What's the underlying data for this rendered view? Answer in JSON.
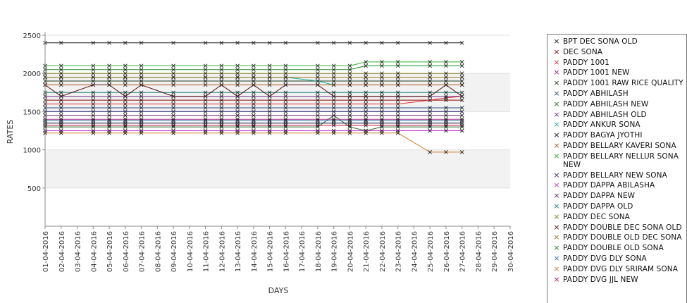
{
  "chart_data": {
    "type": "line",
    "xlabel": "DAYS",
    "ylabel": "RATES",
    "ylim": [
      0,
      2500
    ],
    "yticks": [
      500,
      1000,
      1500,
      2000,
      2500
    ],
    "categories": [
      "01-04-2016",
      "02-04-2016",
      "03-04-2016",
      "04-04-2016",
      "05-04-2016",
      "06-04-2016",
      "07-04-2016",
      "08-04-2016",
      "09-04-2016",
      "10-04-2016",
      "11-04-2016",
      "12-04-2016",
      "13-04-2016",
      "14-04-2016",
      "15-04-2016",
      "16-04-2016",
      "17-04-2016",
      "18-04-2016",
      "19-04-2016",
      "20-04-2016",
      "21-04-2016",
      "22-04-2016",
      "23-04-2016",
      "24-04-2016",
      "25-04-2016",
      "26-04-2016",
      "27-04-2016",
      "28-04-2016",
      "29-04-2016",
      "30-04-2016"
    ],
    "grid": true,
    "legend_position": "right",
    "series": [
      {
        "name": "BPT DEC SONA OLD",
        "color": "#1a1a1a",
        "values": [
          2400,
          2400,
          null,
          2400,
          2400,
          2400,
          2400,
          null,
          2400,
          null,
          2400,
          2400,
          2400,
          2400,
          2400,
          2400,
          null,
          2400,
          2400,
          2400,
          2400,
          2400,
          2400,
          null,
          2400,
          2400,
          2400,
          null,
          null,
          null
        ]
      },
      {
        "name": "DEC SONA",
        "color": "#8b0000",
        "values": [
          1650,
          1650,
          null,
          1650,
          1650,
          1650,
          1650,
          null,
          1650,
          null,
          1650,
          1650,
          1650,
          1650,
          1650,
          1650,
          null,
          1650,
          1650,
          1650,
          1650,
          1650,
          1650,
          null,
          1650,
          1650,
          1650,
          null,
          null,
          null
        ]
      },
      {
        "name": "PADDY 1001",
        "color": "#e03030",
        "values": [
          1600,
          1600,
          null,
          1600,
          1600,
          1600,
          1600,
          null,
          1600,
          null,
          1600,
          1600,
          1600,
          1600,
          1600,
          1600,
          null,
          1600,
          1600,
          1600,
          1600,
          1600,
          1600,
          null,
          1650,
          1680,
          1700,
          null,
          null,
          null
        ]
      },
      {
        "name": "PADDY 1001 NEW",
        "color": "#a0208a",
        "values": [
          1400,
          1400,
          null,
          1400,
          1400,
          1400,
          1400,
          null,
          1400,
          null,
          1400,
          1400,
          1400,
          1400,
          1400,
          1400,
          null,
          1400,
          1400,
          1400,
          1400,
          1400,
          1400,
          null,
          1400,
          1400,
          1400,
          null,
          null,
          null
        ]
      },
      {
        "name": "PADDY 1001 RAW RICE QUALITY",
        "color": "#1f3a1f",
        "values": [
          1900,
          1900,
          null,
          1900,
          1900,
          1900,
          1900,
          null,
          1900,
          null,
          1900,
          1900,
          1900,
          1900,
          1900,
          1900,
          null,
          1900,
          1900,
          1900,
          1900,
          1900,
          1900,
          null,
          1900,
          1900,
          1900,
          null,
          null,
          null
        ]
      },
      {
        "name": "PADDY ABHILASH",
        "color": "#2a4a80",
        "values": [
          1550,
          1550,
          null,
          1550,
          1550,
          1550,
          1550,
          null,
          1550,
          null,
          1550,
          1550,
          1550,
          1550,
          1550,
          1550,
          null,
          1550,
          1550,
          1550,
          1550,
          1550,
          1550,
          null,
          1550,
          1550,
          1550,
          null,
          null,
          null
        ]
      },
      {
        "name": "PADDY ABHILASH NEW",
        "color": "#2e6b2e",
        "values": [
          1300,
          1300,
          null,
          1300,
          1300,
          1300,
          1300,
          null,
          1300,
          null,
          1300,
          1300,
          1300,
          1300,
          1300,
          1300,
          null,
          1300,
          1450,
          1300,
          1250,
          1300,
          1300,
          null,
          1300,
          1300,
          1300,
          null,
          null,
          null
        ]
      },
      {
        "name": "PADDY ABHILASH OLD",
        "color": "#702a8a",
        "values": [
          1700,
          1700,
          null,
          1700,
          1700,
          1700,
          1700,
          null,
          1700,
          null,
          1700,
          1700,
          1700,
          1700,
          1700,
          1700,
          null,
          1700,
          1700,
          1700,
          1700,
          1700,
          1700,
          null,
          1700,
          1700,
          1700,
          null,
          null,
          null
        ]
      },
      {
        "name": "PADDY ANKUR SONA",
        "color": "#20b0a0",
        "values": [
          1950,
          1950,
          null,
          1950,
          1950,
          1950,
          1950,
          null,
          1950,
          null,
          1950,
          1950,
          1950,
          1950,
          1950,
          1950,
          null,
          1900,
          1850,
          1850,
          1850,
          1850,
          1850,
          null,
          1850,
          1850,
          1850,
          null,
          null,
          null
        ]
      },
      {
        "name": "PADDY BAGYA JYOTHI",
        "color": "#0d0d3a",
        "values": [
          1350,
          1350,
          null,
          1350,
          1350,
          1350,
          1350,
          null,
          1350,
          null,
          1350,
          1350,
          1350,
          1350,
          1350,
          1350,
          null,
          1350,
          1350,
          1350,
          1350,
          1350,
          1350,
          null,
          1350,
          1350,
          1350,
          null,
          null,
          null
        ]
      },
      {
        "name": "PADDY BELLARY KAVERI SONA",
        "color": "#b05010",
        "values": [
          1850,
          1850,
          null,
          1850,
          1850,
          1850,
          1850,
          null,
          1850,
          null,
          1850,
          1850,
          1850,
          1850,
          1850,
          1850,
          null,
          1850,
          1850,
          1850,
          1850,
          1850,
          1850,
          null,
          1850,
          1850,
          1850,
          null,
          null,
          null
        ]
      },
      {
        "name": "PADDY BELLARY NELLUR SONA NEW",
        "color": "#30b030",
        "values": [
          2100,
          2100,
          null,
          2100,
          2100,
          2100,
          2100,
          null,
          2100,
          null,
          2100,
          2100,
          2100,
          2100,
          2100,
          2100,
          null,
          2100,
          2100,
          2100,
          2150,
          2150,
          2150,
          null,
          2150,
          2150,
          2150,
          null,
          null,
          null
        ]
      },
      {
        "name": "PADDY BELLARY NEW SONA",
        "color": "#303080",
        "values": [
          1500,
          1500,
          null,
          1500,
          1500,
          1500,
          1500,
          null,
          1500,
          null,
          1500,
          1500,
          1500,
          1500,
          1500,
          1500,
          null,
          1500,
          1500,
          1500,
          1500,
          1500,
          1500,
          null,
          1500,
          1500,
          1500,
          null,
          null,
          null
        ]
      },
      {
        "name": "PADDY DAPPA ABILASHA",
        "color": "#d030d0",
        "values": [
          1250,
          1250,
          null,
          1250,
          1250,
          1250,
          1250,
          null,
          1250,
          null,
          1250,
          1250,
          1250,
          1250,
          1250,
          1250,
          null,
          1250,
          1250,
          1250,
          1250,
          1250,
          1250,
          null,
          1250,
          1250,
          1250,
          null,
          null,
          null
        ]
      },
      {
        "name": "PADDY DAPPA NEW",
        "color": "#6a2a6a",
        "values": [
          1450,
          1450,
          null,
          1450,
          1450,
          1450,
          1450,
          null,
          1450,
          null,
          1450,
          1450,
          1450,
          1450,
          1450,
          1450,
          null,
          1450,
          1450,
          1450,
          1450,
          1450,
          1450,
          null,
          1450,
          1450,
          1450,
          null,
          null,
          null
        ]
      },
      {
        "name": "PADDY DAPPA OLD",
        "color": "#208080",
        "values": [
          1750,
          1750,
          null,
          1750,
          1750,
          1750,
          1750,
          null,
          1750,
          null,
          1750,
          1750,
          1750,
          1750,
          1750,
          1750,
          null,
          1750,
          1750,
          1750,
          1750,
          1750,
          1750,
          null,
          1750,
          1750,
          1750,
          null,
          null,
          null
        ]
      },
      {
        "name": "PADDY DEC SONA",
        "color": "#808020",
        "values": [
          2000,
          2000,
          null,
          2000,
          2000,
          2000,
          2000,
          null,
          2000,
          null,
          2000,
          2000,
          2000,
          2000,
          2000,
          2000,
          null,
          2000,
          2000,
          2000,
          2000,
          2000,
          2000,
          null,
          2000,
          2000,
          2000,
          null,
          null,
          null
        ]
      },
      {
        "name": "PADDY DOUBLE DEC SONA OLD",
        "color": "#5a0d0d",
        "values": [
          1850,
          1700,
          null,
          1850,
          1850,
          1700,
          1850,
          null,
          1700,
          null,
          1700,
          1850,
          1700,
          1850,
          1700,
          1850,
          null,
          1850,
          1700,
          1700,
          1700,
          1700,
          1700,
          null,
          1700,
          1850,
          1700,
          null,
          null,
          null
        ]
      },
      {
        "name": "PADDY DOUBLE OLD DEC SONA",
        "color": "#9a7a1a",
        "values": [
          1950,
          1950,
          null,
          1950,
          1950,
          1950,
          1950,
          null,
          1950,
          null,
          1950,
          1950,
          1950,
          1950,
          1950,
          1950,
          null,
          1950,
          1950,
          1950,
          1950,
          1950,
          1950,
          null,
          1950,
          1950,
          1950,
          null,
          null,
          null
        ]
      },
      {
        "name": "PADDY DOUBLE OLD SONA",
        "color": "#1a8a1a",
        "values": [
          2050,
          2050,
          null,
          2050,
          2050,
          2050,
          2050,
          null,
          2050,
          null,
          2050,
          2050,
          2050,
          2050,
          2050,
          2050,
          null,
          2050,
          2050,
          2050,
          2100,
          2100,
          2100,
          null,
          2100,
          2100,
          2100,
          null,
          null,
          null
        ]
      },
      {
        "name": "PADDY DVG DLY SONA",
        "color": "#3070b0",
        "values": [
          1380,
          1380,
          null,
          1380,
          1380,
          1380,
          1380,
          null,
          1380,
          null,
          1380,
          1380,
          1380,
          1380,
          1380,
          1380,
          null,
          1380,
          1380,
          1380,
          1380,
          1380,
          1380,
          null,
          1380,
          1380,
          1380,
          null,
          null,
          null
        ]
      },
      {
        "name": "PADDY DVG DLY SRIRAM SONA",
        "color": "#d08030",
        "values": [
          1220,
          1220,
          null,
          1220,
          1220,
          1220,
          1220,
          null,
          1220,
          null,
          1220,
          1220,
          1220,
          1220,
          1220,
          1220,
          null,
          1220,
          1220,
          1220,
          1220,
          1220,
          1220,
          null,
          970,
          970,
          970,
          null,
          null,
          null
        ]
      },
      {
        "name": "PADDY DVG JJL NEW",
        "color": "#c01040",
        "values": [
          1320,
          1320,
          null,
          1320,
          1320,
          1320,
          1320,
          null,
          1320,
          null,
          1320,
          1320,
          1320,
          1320,
          1320,
          1320,
          null,
          1320,
          1320,
          1320,
          1320,
          1320,
          1320,
          null,
          1320,
          1320,
          1320,
          null,
          null,
          null
        ]
      }
    ]
  }
}
